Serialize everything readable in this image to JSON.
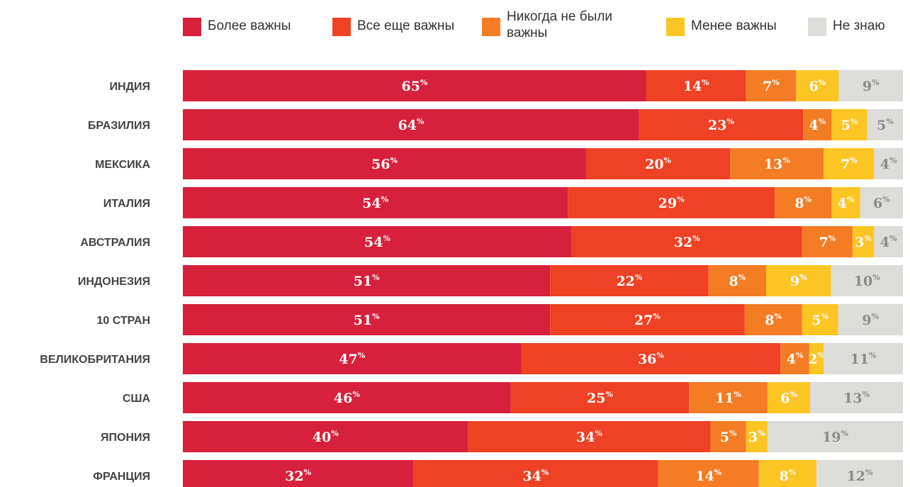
{
  "chart_data": {
    "type": "bar",
    "orientation": "horizontal",
    "stacked": true,
    "percent_suffix": "%",
    "categories": [
      "ИНДИЯ",
      "БРАЗИЛИЯ",
      "МЕКСИКА",
      "ИТАЛИЯ",
      "АВСТРАЛИЯ",
      "ИНДОНЕЗИЯ",
      "10 СТРАН",
      "ВЕЛИКОБРИТАНИЯ",
      "США",
      "ЯПОНИЯ",
      "ФРАНЦИЯ"
    ],
    "series": [
      {
        "name": "Более важны",
        "color": "#d7203b",
        "label_color": "#ffffff",
        "values": [
          65,
          64,
          56,
          54,
          54,
          51,
          51,
          47,
          46,
          40,
          32
        ]
      },
      {
        "name": "Все еще важны",
        "color": "#ef4123",
        "label_color": "#ffffff",
        "values": [
          14,
          23,
          20,
          29,
          32,
          22,
          27,
          36,
          25,
          34,
          34
        ]
      },
      {
        "name": "Никогда не были важны",
        "color": "#f47c24",
        "label_color": "#ffffff",
        "values": [
          7,
          4,
          13,
          8,
          7,
          8,
          8,
          4,
          11,
          5,
          14
        ]
      },
      {
        "name": "Менее важны",
        "color": "#fdc524",
        "label_color": "#ffffff",
        "values": [
          6,
          5,
          7,
          4,
          3,
          9,
          5,
          2,
          6,
          3,
          8
        ]
      },
      {
        "name": "Не знаю",
        "color": "#dcdcd8",
        "label_color": "#8a8a8a",
        "values": [
          9,
          5,
          4,
          6,
          4,
          10,
          9,
          11,
          13,
          19,
          12
        ]
      }
    ],
    "legend_position": "top",
    "grid": false
  }
}
